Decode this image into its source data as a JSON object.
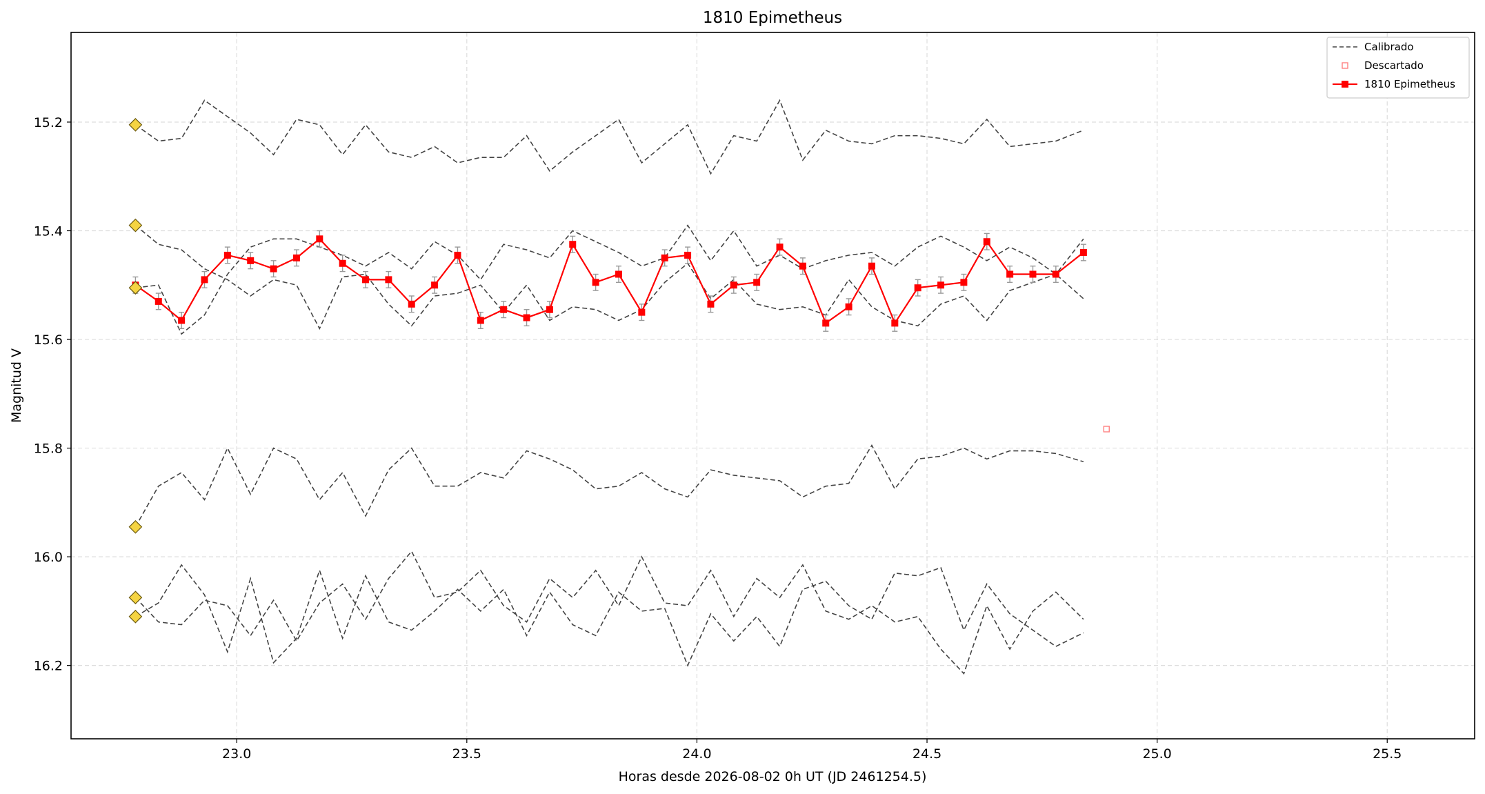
{
  "chart_data": {
    "type": "line",
    "title": "1810 Epimetheus",
    "xlabel": "Horas desde 2026-08-02 0h UT (JD 2461254.5)",
    "ylabel": "Magnitud V",
    "xlim": [
      22.64,
      25.69
    ],
    "ylim": [
      16.335,
      15.035
    ],
    "y_inverted": true,
    "xticks": [
      23.0,
      23.5,
      24.0,
      24.5,
      25.0,
      25.5
    ],
    "xtick_labels": [
      "23.0",
      "23.5",
      "24.0",
      "24.5",
      "25.0",
      "25.5"
    ],
    "yticks": [
      15.2,
      15.4,
      15.6,
      15.8,
      16.0,
      16.2
    ],
    "ytick_labels": [
      "15.2",
      "15.4",
      "15.6",
      "15.8",
      "16.0",
      "16.2"
    ],
    "grid": true,
    "legend_position": "top-right",
    "legend": [
      "Calibrado",
      "Descartado",
      "1810 Epimetheus"
    ],
    "colors": {
      "target": "#ff0000",
      "calibrated": "#444444",
      "discarded": "#ff8080",
      "reference_marker": "#f5d442",
      "errorbar": "#999999",
      "grid": "#dddddd"
    },
    "x": [
      22.78,
      22.83,
      22.88,
      22.93,
      22.98,
      23.03,
      23.08,
      23.13,
      23.18,
      23.23,
      23.28,
      23.33,
      23.38,
      23.43,
      23.48,
      23.53,
      23.58,
      23.63,
      23.68,
      23.73,
      23.78,
      23.83,
      23.88,
      23.93,
      23.98,
      24.03,
      24.08,
      24.13,
      24.18,
      24.23,
      24.28,
      24.33,
      24.38,
      24.43,
      24.48,
      24.53,
      24.58,
      24.63,
      24.68,
      24.73,
      24.78,
      24.84
    ],
    "series": [
      {
        "name": "1810 Epimetheus",
        "role": "target",
        "values": [
          15.5,
          15.53,
          15.565,
          15.49,
          15.445,
          15.455,
          15.47,
          15.45,
          15.415,
          15.46,
          15.49,
          15.49,
          15.535,
          15.5,
          15.445,
          15.565,
          15.545,
          15.56,
          15.545,
          15.425,
          15.495,
          15.48,
          15.55,
          15.45,
          15.445,
          15.535,
          15.5,
          15.495,
          15.43,
          15.465,
          15.57,
          15.54,
          15.465,
          15.57,
          15.505,
          15.5,
          15.495,
          15.42,
          15.48,
          15.48,
          15.48,
          15.44
        ],
        "errors": [
          0.015,
          0.015,
          0.015,
          0.015,
          0.015,
          0.015,
          0.015,
          0.015,
          0.015,
          0.015,
          0.015,
          0.015,
          0.015,
          0.015,
          0.015,
          0.015,
          0.015,
          0.015,
          0.015,
          0.015,
          0.015,
          0.015,
          0.015,
          0.015,
          0.015,
          0.015,
          0.015,
          0.015,
          0.015,
          0.015,
          0.015,
          0.015,
          0.015,
          0.015,
          0.015,
          0.015,
          0.015,
          0.015,
          0.015,
          0.015,
          0.015,
          0.015
        ]
      },
      {
        "name": "Calibrado",
        "role": "calibrated",
        "values": [
          15.205,
          15.235,
          15.23,
          15.16,
          15.19,
          15.22,
          15.26,
          15.195,
          15.205,
          15.26,
          15.205,
          15.255,
          15.265,
          15.245,
          15.275,
          15.265,
          15.265,
          15.225,
          15.29,
          15.255,
          15.225,
          15.195,
          15.275,
          15.24,
          15.205,
          15.295,
          15.225,
          15.235,
          15.16,
          15.27,
          15.215,
          15.235,
          15.24,
          15.225,
          15.225,
          15.23,
          15.24,
          15.195,
          15.245,
          15.24,
          15.235,
          15.215
        ]
      },
      {
        "name": "Calibrado",
        "role": "calibrated",
        "values": [
          15.39,
          15.425,
          15.435,
          15.47,
          15.49,
          15.52,
          15.49,
          15.5,
          15.58,
          15.485,
          15.48,
          15.535,
          15.575,
          15.52,
          15.515,
          15.5,
          15.55,
          15.5,
          15.565,
          15.54,
          15.545,
          15.565,
          15.545,
          15.495,
          15.46,
          15.525,
          15.49,
          15.535,
          15.545,
          15.54,
          15.555,
          15.49,
          15.54,
          15.565,
          15.575,
          15.535,
          15.52,
          15.565,
          15.51,
          15.495,
          15.48,
          15.415
        ]
      },
      {
        "name": "Calibrado",
        "role": "calibrated",
        "values": [
          15.505,
          15.5,
          15.59,
          15.555,
          15.48,
          15.43,
          15.415,
          15.415,
          15.43,
          15.445,
          15.465,
          15.44,
          15.47,
          15.42,
          15.445,
          15.49,
          15.425,
          15.435,
          15.45,
          15.4,
          15.42,
          15.44,
          15.465,
          15.45,
          15.39,
          15.455,
          15.4,
          15.465,
          15.445,
          15.47,
          15.455,
          15.445,
          15.44,
          15.465,
          15.43,
          15.41,
          15.43,
          15.455,
          15.43,
          15.45,
          15.48,
          15.525
        ]
      },
      {
        "name": "Calibrado",
        "role": "calibrated",
        "values": [
          15.945,
          15.87,
          15.845,
          15.895,
          15.8,
          15.885,
          15.8,
          15.82,
          15.895,
          15.845,
          15.925,
          15.84,
          15.8,
          15.87,
          15.87,
          15.845,
          15.855,
          15.805,
          15.82,
          15.84,
          15.875,
          15.87,
          15.845,
          15.875,
          15.89,
          15.84,
          15.85,
          15.855,
          15.86,
          15.89,
          15.87,
          15.865,
          15.795,
          15.875,
          15.82,
          15.815,
          15.8,
          15.82,
          15.805,
          15.805,
          15.81,
          15.825
        ]
      },
      {
        "name": "Calibrado",
        "role": "calibrated",
        "values": [
          16.075,
          16.12,
          16.125,
          16.08,
          16.09,
          16.145,
          16.08,
          16.155,
          16.085,
          16.05,
          16.115,
          16.04,
          15.99,
          16.075,
          16.065,
          16.025,
          16.09,
          16.12,
          16.04,
          16.075,
          16.025,
          16.09,
          16.0,
          16.085,
          16.09,
          16.025,
          16.11,
          16.04,
          16.075,
          16.015,
          16.1,
          16.115,
          16.09,
          16.12,
          16.11,
          16.17,
          16.215,
          16.09,
          16.17,
          16.1,
          16.065,
          16.115
        ]
      },
      {
        "name": "Calibrado",
        "role": "calibrated",
        "values": [
          16.11,
          16.085,
          16.015,
          16.07,
          16.175,
          16.04,
          16.195,
          16.15,
          16.025,
          16.15,
          16.035,
          16.12,
          16.135,
          16.1,
          16.06,
          16.1,
          16.06,
          16.145,
          16.065,
          16.125,
          16.145,
          16.065,
          16.1,
          16.095,
          16.2,
          16.105,
          16.155,
          16.11,
          16.165,
          16.06,
          16.045,
          16.09,
          16.115,
          16.03,
          16.035,
          16.02,
          16.135,
          16.05,
          16.105,
          16.135,
          16.165,
          16.14
        ]
      }
    ],
    "reference_markers": [
      {
        "x": 22.78,
        "y": 15.205
      },
      {
        "x": 22.78,
        "y": 15.39
      },
      {
        "x": 22.78,
        "y": 15.505
      },
      {
        "x": 22.78,
        "y": 15.945
      },
      {
        "x": 22.78,
        "y": 16.075
      },
      {
        "x": 22.78,
        "y": 16.11
      }
    ],
    "discarded": [
      {
        "x": 24.89,
        "y": 15.765
      }
    ]
  }
}
